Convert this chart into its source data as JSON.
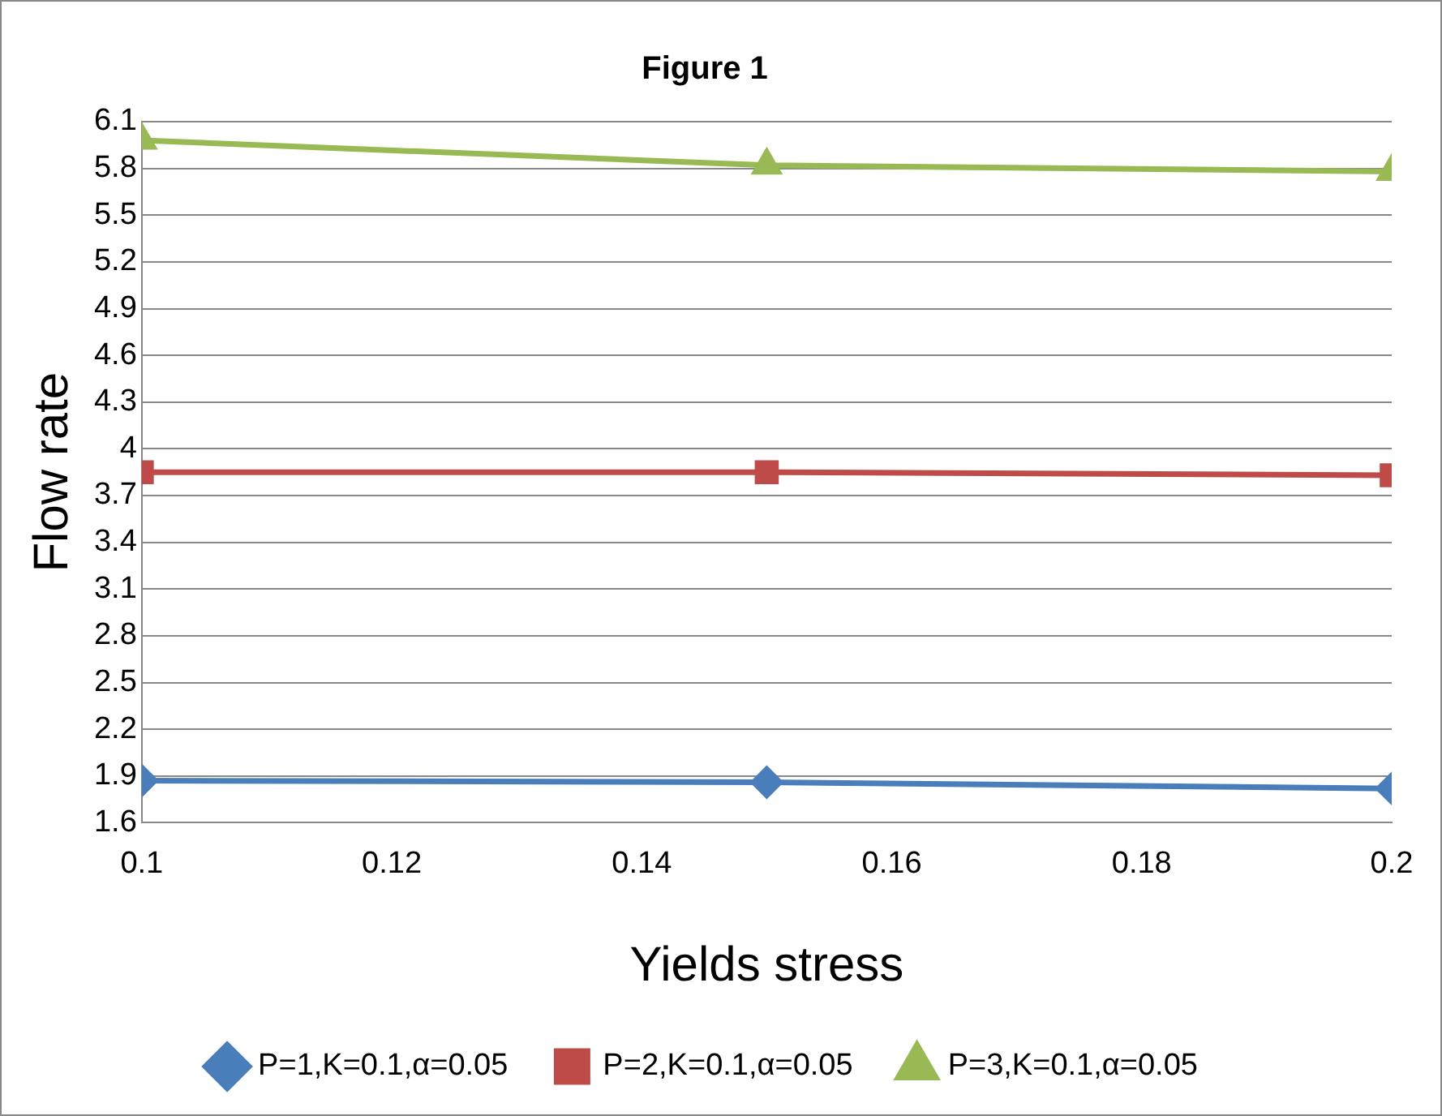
{
  "chart_data": {
    "type": "line",
    "title": "Figure 1",
    "xlabel": "Yields stress",
    "ylabel": "Flow rate",
    "x": [
      0.1,
      0.15,
      0.2
    ],
    "series": [
      {
        "name": "P=1,K=0.1,α=0.05",
        "color": "#4a7ebb",
        "marker": "diamond",
        "values": [
          1.87,
          1.86,
          1.82
        ]
      },
      {
        "name": "P=2,K=0.1,α=0.05",
        "color": "#be4b48",
        "marker": "square",
        "values": [
          3.85,
          3.85,
          3.83
        ]
      },
      {
        "name": "P=3,K=0.1,α=0.05",
        "color": "#98b954",
        "marker": "triangle",
        "values": [
          5.98,
          5.82,
          5.78
        ]
      }
    ],
    "xlim": [
      0.1,
      0.2
    ],
    "xticks": [
      0.1,
      0.12,
      0.14,
      0.16,
      0.18,
      0.2
    ],
    "ylim": [
      1.6,
      6.1
    ],
    "yticks": [
      1.6,
      1.9,
      2.2,
      2.5,
      2.8,
      3.1,
      3.4,
      3.7,
      4,
      4.3,
      4.6,
      4.9,
      5.2,
      5.5,
      5.8,
      6.1
    ],
    "grid": "y",
    "legend": "bottom"
  }
}
